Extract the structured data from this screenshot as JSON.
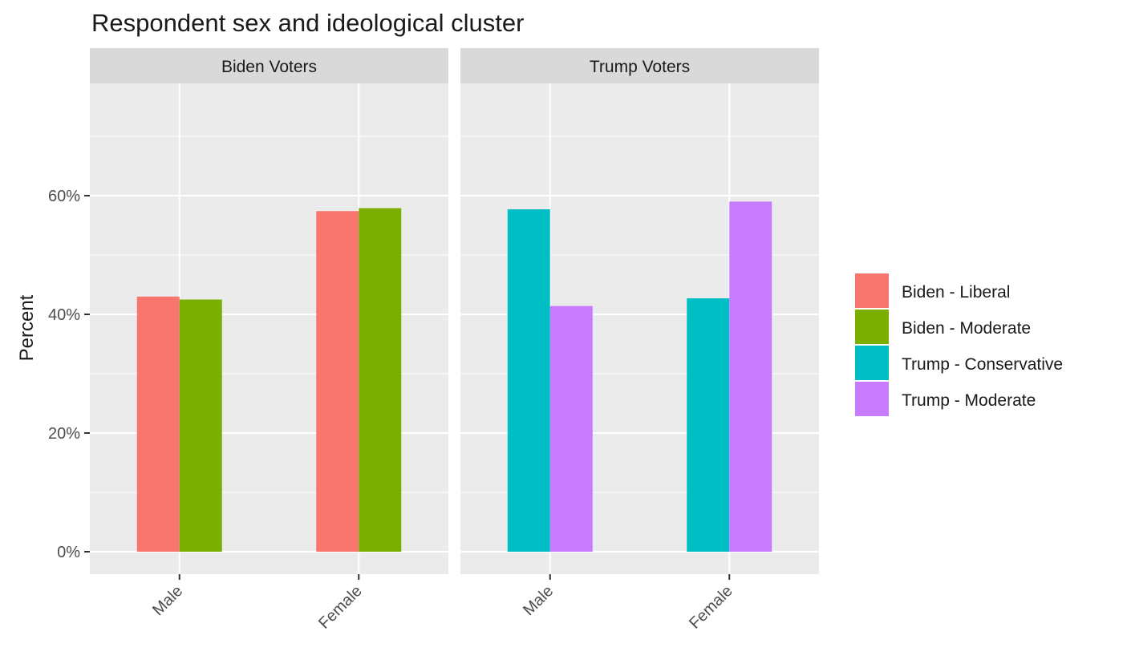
{
  "chart_data": {
    "type": "bar",
    "title": "Respondent sex and ideological cluster",
    "xlabel": "",
    "ylabel": "Percent",
    "ylim": [
      0,
      0.75
    ],
    "y_ticks": [
      0,
      0.2,
      0.4,
      0.6
    ],
    "y_tick_labels": [
      "0%",
      "20%",
      "40%",
      "60%"
    ],
    "grid": true,
    "legend_position": "right",
    "categories": [
      "Male",
      "Female"
    ],
    "colors": {
      "Biden - Liberal": "#F8766D",
      "Biden - Moderate": "#7CAE00",
      "Trump - Conservative": "#00BFC4",
      "Trump - Moderate": "#C77CFF"
    },
    "legend": [
      "Biden - Liberal",
      "Biden - Moderate",
      "Trump - Conservative",
      "Trump - Moderate"
    ],
    "facets": [
      {
        "label": "Biden Voters",
        "series": [
          {
            "name": "Biden - Liberal",
            "values": [
              0.43,
              0.574
            ]
          },
          {
            "name": "Biden - Moderate",
            "values": [
              0.425,
              0.579
            ]
          }
        ]
      },
      {
        "label": "Trump Voters",
        "series": [
          {
            "name": "Trump - Conservative",
            "values": [
              0.577,
              0.427
            ]
          },
          {
            "name": "Trump - Moderate",
            "values": [
              0.414,
              0.59
            ]
          }
        ]
      }
    ]
  }
}
